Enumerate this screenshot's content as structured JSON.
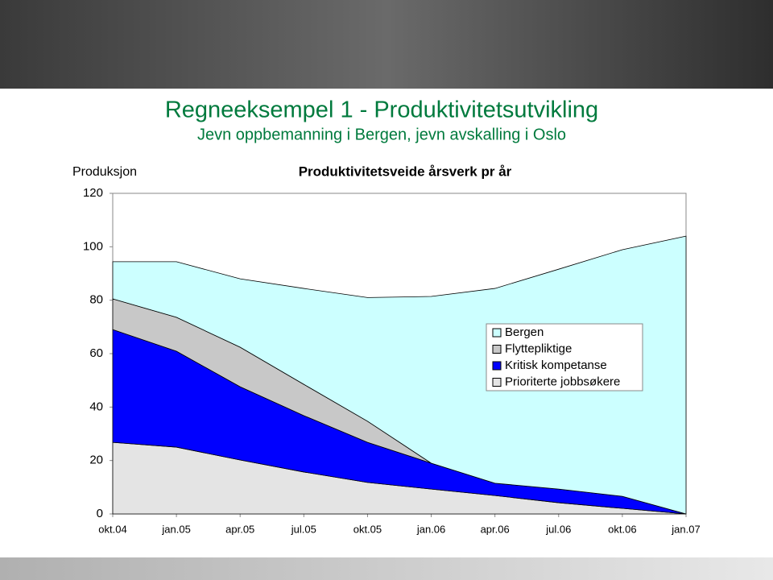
{
  "chart_data": {
    "type": "area",
    "title": "Regneeksempel 1 - Produktivitetsutvikling",
    "subtitle": "Jevn oppbemanning i Bergen, jevn avskalling i Oslo",
    "chart_title": "Produktivitetsveide årsverk pr år",
    "y_label": "Produksjon",
    "categories": [
      "okt.04",
      "jan.05",
      "apr.05",
      "jul.05",
      "okt.05",
      "jan.06",
      "apr.06",
      "jul.06",
      "okt.06",
      "jan.07"
    ],
    "ylim": [
      0,
      120
    ],
    "yticks": [
      0,
      20,
      40,
      60,
      80,
      100,
      120
    ],
    "grid": false,
    "stacked": true,
    "legend": "right",
    "series": [
      {
        "name": "Bergen",
        "color": "#ccffff",
        "values": [
          13.9,
          20.8,
          25.6,
          35.9,
          46.3,
          62.4,
          72.9,
          82.3,
          92.3,
          104
        ]
      },
      {
        "name": "Flyttepliktige",
        "color": "#c8c8c8",
        "values": [
          11.5,
          12.7,
          14.8,
          11.7,
          7.9,
          0,
          0,
          0,
          0,
          0
        ]
      },
      {
        "name": "Kritisk kompetanse",
        "color": "#0000ff",
        "values": [
          42.2,
          35.9,
          27.4,
          21.1,
          15,
          9.7,
          4.6,
          5.1,
          4.5,
          0
        ]
      },
      {
        "name": "Prioriterte jobbsøkere",
        "color": "#e4e4e4",
        "values": [
          26.8,
          25,
          20.2,
          15.7,
          11.8,
          9.3,
          6.9,
          4.2,
          2.1,
          0
        ]
      }
    ]
  }
}
